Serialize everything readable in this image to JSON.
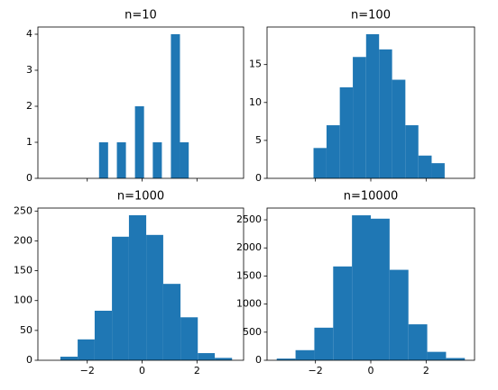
{
  "chart_data": [
    {
      "type": "histogram",
      "title": "n=10",
      "color": "#1f77b4",
      "bins": [
        -1.57,
        -1.24,
        -0.92,
        -0.59,
        -0.26,
        0.07,
        0.39,
        0.72,
        1.05,
        1.38,
        1.7
      ],
      "values": [
        1,
        0,
        1,
        0,
        2,
        0,
        1,
        0,
        4,
        1
      ],
      "xlim": [
        -3.8,
        3.7
      ],
      "ylim": [
        0,
        4.2
      ],
      "yticks": [
        0,
        1,
        2,
        3,
        4
      ]
    },
    {
      "type": "histogram",
      "title": "n=100",
      "color": "#1f77b4",
      "bins": [
        -2.07,
        -1.6,
        -1.12,
        -0.65,
        -0.17,
        0.3,
        0.77,
        1.25,
        1.72,
        2.2,
        2.67
      ],
      "values": [
        4,
        7,
        12,
        16,
        19,
        17,
        13,
        7,
        3,
        2
      ],
      "xlim": [
        -3.75,
        3.75
      ],
      "ylim": [
        0,
        19.95
      ],
      "yticks": [
        0,
        5,
        10,
        15
      ]
    },
    {
      "type": "histogram",
      "title": "n=1000",
      "color": "#1f77b4",
      "bins": [
        -2.98,
        -2.35,
        -1.73,
        -1.1,
        -0.48,
        0.15,
        0.77,
        1.4,
        2.03,
        2.65,
        3.28
      ],
      "values": [
        6,
        35,
        83,
        207,
        243,
        210,
        128,
        72,
        12,
        4
      ],
      "xlim": [
        -3.8,
        3.7
      ],
      "ylim": [
        0,
        255
      ],
      "yticks": [
        0,
        50,
        100,
        150,
        200,
        250
      ],
      "xticks": [
        {
          "value": -2,
          "label": "−2"
        },
        0,
        2
      ]
    },
    {
      "type": "histogram",
      "title": "n=10000",
      "color": "#1f77b4",
      "bins": [
        -3.4,
        -2.72,
        -2.04,
        -1.36,
        -0.68,
        0.0,
        0.68,
        1.36,
        2.04,
        2.72,
        3.4
      ],
      "values": [
        30,
        180,
        580,
        1670,
        2580,
        2520,
        1610,
        640,
        150,
        40
      ],
      "xlim": [
        -3.75,
        3.75
      ],
      "ylim": [
        0,
        2709
      ],
      "yticks": [
        0,
        500,
        1000,
        1500,
        2000,
        2500
      ],
      "xticks": [
        {
          "value": -2,
          "label": "−2"
        },
        0,
        2
      ]
    }
  ]
}
